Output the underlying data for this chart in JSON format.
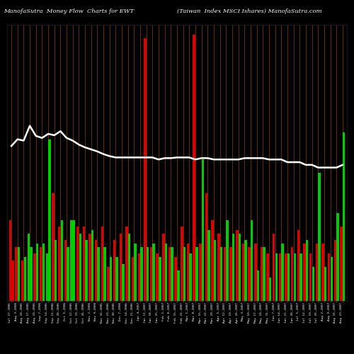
{
  "title_left": "ManofaSutra  Money Flow  Charts for EWT",
  "title_right": "(Taiwan  Index MSCI Isharеs) ManofaSutra.com",
  "bg_color": "#000000",
  "bar_color_red": "#dd0000",
  "bar_color_green": "#00cc00",
  "line_color": "#ffffff",
  "grid_color": "#8B4500",
  "categories": [
    "Jul 27,2006",
    "Aug 3,2006",
    "Aug 10,2006",
    "Aug 17,2006",
    "Aug 24,2006",
    "Sep 7,2006",
    "Sep 14,2006",
    "Sep 21,2006",
    "Sep 28,2006",
    "Oct 5,2006",
    "Oct 12,2006",
    "Oct 19,2006",
    "Oct 26,2006",
    "Nov 2,2006",
    "Nov 9,2006",
    "Nov 16,2006",
    "Nov 23,2006",
    "Nov 30,2006",
    "Dec 7,2006",
    "Dec 14,2006",
    "Dec 21,2006",
    "Jan 4,2007",
    "Jan 11,2007",
    "Jan 18,2007",
    "Jan 25,2007",
    "Feb 1,2007",
    "Feb 8,2007",
    "Feb 15,2007",
    "Feb 22,2007",
    "Mar 1,2007",
    "Mar 8,2007",
    "Mar 15,2007",
    "Mar 22,2007",
    "Mar 29,2007",
    "Apr 5,2007",
    "Apr 12,2007",
    "Apr 19,2007",
    "Apr 26,2007",
    "May 3,2007",
    "May 10,2007",
    "May 17,2007",
    "May 24,2007",
    "May 31,2007",
    "Jun 7,2007",
    "Jun 14,2007",
    "Jun 21,2007",
    "Jun 28,2007",
    "Jul 5,2007",
    "Jul 12,2007",
    "Jul 19,2007",
    "Jul 26,2007",
    "Aug 2,2007",
    "Aug 9,2007",
    "Aug 16,2007",
    "Aug 23,2007"
  ],
  "bar_A_heights": [
    120,
    80,
    60,
    100,
    70,
    80,
    70,
    160,
    110,
    90,
    120,
    110,
    110,
    100,
    90,
    110,
    50,
    90,
    100,
    110,
    65,
    70,
    390,
    80,
    70,
    100,
    80,
    65,
    110,
    85,
    395,
    85,
    160,
    120,
    100,
    80,
    80,
    105,
    85,
    80,
    85,
    80,
    70,
    100,
    70,
    70,
    80,
    105,
    85,
    70,
    85,
    85,
    70,
    90,
    110
  ],
  "bar_B_heights": [
    60,
    80,
    65,
    80,
    85,
    85,
    240,
    90,
    120,
    80,
    120,
    100,
    90,
    105,
    80,
    80,
    65,
    65,
    55,
    100,
    85,
    80,
    80,
    85,
    65,
    85,
    80,
    45,
    80,
    70,
    80,
    210,
    105,
    90,
    80,
    120,
    100,
    100,
    90,
    120,
    45,
    80,
    35,
    70,
    85,
    70,
    70,
    70,
    90,
    50,
    190,
    50,
    65,
    130,
    250
  ],
  "bar_A_colors": [
    "r",
    "r",
    "r",
    "g",
    "r",
    "r",
    "g",
    "r",
    "r",
    "r",
    "g",
    "r",
    "r",
    "r",
    "r",
    "r",
    "r",
    "r",
    "r",
    "r",
    "r",
    "r",
    "r",
    "r",
    "r",
    "r",
    "r",
    "r",
    "r",
    "r",
    "r",
    "r",
    "r",
    "r",
    "r",
    "r",
    "r",
    "r",
    "r",
    "r",
    "r",
    "r",
    "r",
    "r",
    "r",
    "r",
    "r",
    "r",
    "r",
    "r",
    "r",
    "r",
    "r",
    "r",
    "r"
  ],
  "bar_B_colors": [
    "r",
    "g",
    "g",
    "g",
    "g",
    "g",
    "g",
    "g",
    "g",
    "g",
    "g",
    "g",
    "g",
    "g",
    "g",
    "g",
    "g",
    "g",
    "g",
    "g",
    "g",
    "g",
    "g",
    "g",
    "g",
    "g",
    "g",
    "g",
    "g",
    "g",
    "g",
    "g",
    "g",
    "g",
    "g",
    "g",
    "g",
    "g",
    "g",
    "g",
    "g",
    "g",
    "g",
    "g",
    "g",
    "g",
    "g",
    "g",
    "g",
    "g",
    "g",
    "g",
    "g",
    "g",
    "g"
  ],
  "line_values": [
    230,
    240,
    238,
    260,
    245,
    242,
    248,
    246,
    252,
    242,
    238,
    232,
    228,
    225,
    222,
    218,
    215,
    213,
    213,
    213,
    213,
    213,
    213,
    213,
    210,
    212,
    212,
    213,
    213,
    213,
    210,
    212,
    212,
    210,
    210,
    210,
    210,
    210,
    212,
    212,
    212,
    212,
    210,
    210,
    210,
    206,
    206,
    206,
    202,
    202,
    198,
    198,
    198,
    198,
    202
  ],
  "ylim_max": 410,
  "figsize": [
    5.0,
    5.0
  ],
  "dpi": 100
}
